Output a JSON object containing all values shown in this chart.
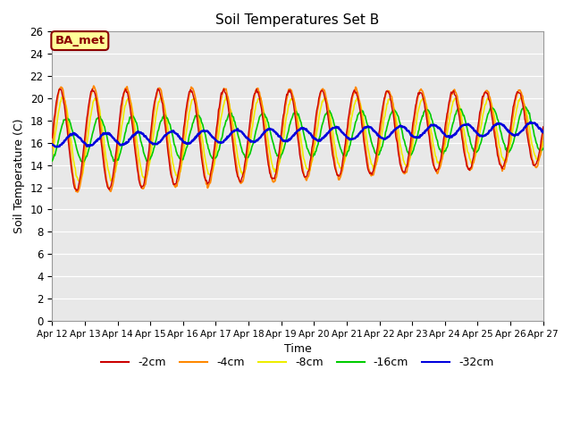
{
  "title": "Soil Temperatures Set B",
  "xlabel": "Time",
  "ylabel": "Soil Temperature (C)",
  "ylim": [
    0,
    26
  ],
  "yticks": [
    0,
    2,
    4,
    6,
    8,
    10,
    12,
    14,
    16,
    18,
    20,
    22,
    24,
    26
  ],
  "xlim": [
    0,
    360
  ],
  "xtick_labels": [
    "Apr 12",
    "Apr 13",
    "Apr 14",
    "Apr 15",
    "Apr 16",
    "Apr 17",
    "Apr 18",
    "Apr 19",
    "Apr 20",
    "Apr 21",
    "Apr 22",
    "Apr 23",
    "Apr 24",
    "Apr 25",
    "Apr 26",
    "Apr 27"
  ],
  "xtick_positions": [
    0,
    24,
    48,
    72,
    96,
    120,
    144,
    168,
    192,
    216,
    240,
    264,
    288,
    312,
    336,
    360
  ],
  "annotation_text": "BA_met",
  "colors": {
    "-2cm": "#cc0000",
    "-4cm": "#ff8800",
    "-8cm": "#eeee00",
    "-16cm": "#00cc00",
    "-32cm": "#0000dd"
  },
  "legend_labels": [
    "-2cm",
    "-4cm",
    "-8cm",
    "-16cm",
    "-32cm"
  ],
  "plot_bg_color": "#e8e8e8",
  "n_points": 721
}
